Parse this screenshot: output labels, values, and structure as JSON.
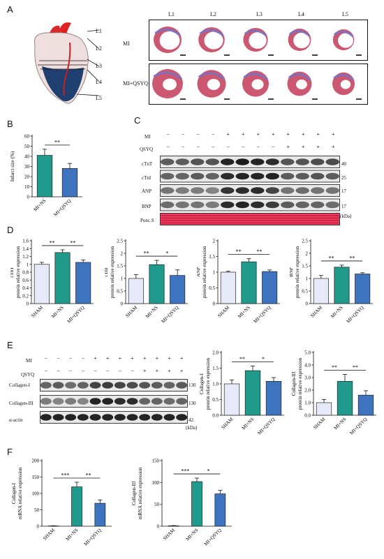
{
  "panels": {
    "A": "A",
    "B": "B",
    "C": "C",
    "D": "D",
    "E": "E",
    "F": "F"
  },
  "colors": {
    "sham": "#e6eaf8",
    "ns": "#1f9a8c",
    "qsyq": "#3d73bf",
    "infarct": "#1f3f70",
    "stain_red": "#c23a57",
    "stain_blue": "#6f76c9"
  },
  "panelA": {
    "levels": [
      "L1",
      "L2",
      "L3",
      "L4",
      "L5"
    ],
    "rows": [
      "MI",
      "MI+QSYQ"
    ]
  },
  "panelC": {
    "mi_label": "MI",
    "qsyq_label": "QSYQ",
    "mi_signs": [
      "−",
      "−",
      "−",
      "−",
      "+",
      "+",
      "+",
      "+",
      "+",
      "+",
      "+",
      "+"
    ],
    "qsyq_signs": [
      "−",
      "−",
      "−",
      "−",
      "−",
      "−",
      "−",
      "−",
      "+",
      "+",
      "+",
      "+"
    ],
    "bands": [
      "cTnT",
      "cTnI",
      "ANP",
      "BNP",
      "Ponc.S"
    ],
    "sizes": [
      "40",
      "25",
      "17",
      "17"
    ],
    "unit": "(kDa)"
  },
  "panelE": {
    "mi_label": "MI",
    "qsyq_label": "QSYQ",
    "mi_signs": [
      "−",
      "−",
      "−",
      "−",
      "+",
      "+",
      "+",
      "+",
      "+",
      "+",
      "+",
      "+"
    ],
    "qsyq_signs": [
      "−",
      "−",
      "−",
      "−",
      "−",
      "−",
      "−",
      "−",
      "+",
      "+",
      "+",
      "+"
    ],
    "bands": [
      "Collagen-I",
      "Collagen-III",
      "α-actin"
    ],
    "sizes": [
      "130",
      "130",
      "42"
    ],
    "unit": "(kDa)"
  },
  "chart_data": [
    {
      "id": "B",
      "type": "bar",
      "categories": [
        "MI+NS",
        "MI+QSYQ"
      ],
      "values": [
        41,
        28
      ],
      "errors": [
        6,
        5
      ],
      "ylabel": "Infarct size (%)",
      "ylim": [
        0,
        60
      ],
      "ticks": [
        "0",
        "10",
        "20",
        "30",
        "40",
        "50",
        "60"
      ],
      "sig": [
        {
          "from": 0,
          "to": 1,
          "label": "**"
        }
      ]
    },
    {
      "id": "D1",
      "type": "bar",
      "categories": [
        "SHAM",
        "MI+NS",
        "MI+QSYQ"
      ],
      "values": [
        1.0,
        1.3,
        1.05
      ],
      "errors": [
        0.05,
        0.07,
        0.06
      ],
      "ylabel": "cTnT\nprotein relative expression",
      "ylim": [
        0,
        1.6
      ],
      "ticks": [
        "0",
        "0.2",
        "0.4",
        "0.6",
        "0.8",
        "1",
        "1.2",
        "1.4",
        "1.6"
      ],
      "sig": [
        {
          "from": 0,
          "to": 1,
          "label": "**"
        },
        {
          "from": 1,
          "to": 2,
          "label": "**"
        }
      ]
    },
    {
      "id": "D2",
      "type": "bar",
      "categories": [
        "SHAM",
        "MI+NS",
        "MI+QSYQ"
      ],
      "values": [
        1.0,
        1.55,
        1.12
      ],
      "errors": [
        0.15,
        0.17,
        0.22
      ],
      "ylabel": "cTnI\nprotein relative expression",
      "ylim": [
        0,
        2.5
      ],
      "ticks": [
        "0",
        "0.5",
        "1",
        "1.5",
        "2",
        "2.5"
      ],
      "sig": [
        {
          "from": 0,
          "to": 1,
          "label": "**"
        },
        {
          "from": 1,
          "to": 2,
          "label": "*"
        }
      ]
    },
    {
      "id": "D3",
      "type": "bar",
      "categories": [
        "SHAM",
        "MI+NS",
        "MI+QSYQ"
      ],
      "values": [
        1.0,
        1.33,
        1.02
      ],
      "errors": [
        0.03,
        0.1,
        0.05
      ],
      "ylabel": "ANP\nprotein relative expression",
      "ylim": [
        0,
        2
      ],
      "ticks": [
        "0",
        "0.5",
        "1",
        "1.5",
        "2"
      ],
      "sig": [
        {
          "from": 0,
          "to": 1,
          "label": "**"
        },
        {
          "from": 1,
          "to": 2,
          "label": "**"
        }
      ]
    },
    {
      "id": "D4",
      "type": "bar",
      "categories": [
        "SHAM",
        "MI+NS",
        "MI+QSYQ"
      ],
      "values": [
        1.0,
        1.45,
        1.18
      ],
      "errors": [
        0.12,
        0.08,
        0.05
      ],
      "ylabel": "BNP\nprotein relative expression",
      "ylim": [
        0,
        2.5
      ],
      "ticks": [
        "0",
        "0.5",
        "1",
        "1.5",
        "2",
        "2.5"
      ],
      "sig": [
        {
          "from": 0,
          "to": 1,
          "label": "**"
        },
        {
          "from": 1,
          "to": 2,
          "label": "**"
        }
      ]
    },
    {
      "id": "E1",
      "type": "bar",
      "categories": [
        "SHAM",
        "MI+NS",
        "MI+QSYQ"
      ],
      "values": [
        1.0,
        1.42,
        1.08
      ],
      "errors": [
        0.12,
        0.15,
        0.12
      ],
      "ylabel": "Collagen-I\nprotein relative expression",
      "ylim": [
        0,
        2.0
      ],
      "ticks": [
        "0.0",
        "0.5",
        "1.0",
        "1.5",
        "2.0"
      ],
      "sig": [
        {
          "from": 0,
          "to": 1,
          "label": "**"
        },
        {
          "from": 1,
          "to": 2,
          "label": "*"
        }
      ]
    },
    {
      "id": "E2",
      "type": "bar",
      "categories": [
        "SHAM",
        "MI+NS",
        "MI+QSYQ"
      ],
      "values": [
        1.0,
        2.7,
        1.6
      ],
      "errors": [
        0.25,
        0.55,
        0.35
      ],
      "ylabel": "Collagen-III\nprotein relative expression",
      "ylim": [
        0,
        5.0
      ],
      "ticks": [
        "0.0",
        "1.0",
        "2.0",
        "3.0",
        "4.0",
        "5.0"
      ],
      "sig": [
        {
          "from": 0,
          "to": 1,
          "label": "**"
        },
        {
          "from": 1,
          "to": 2,
          "label": "**"
        }
      ]
    },
    {
      "id": "F1",
      "type": "bar",
      "categories": [
        "SHAM",
        "MI+NS",
        "MI+QSYQ"
      ],
      "values": [
        1,
        120,
        70
      ],
      "errors": [
        0.5,
        14,
        10
      ],
      "ylabel": "Collagen-I\nmRNA relative expression",
      "ylim": [
        0,
        200
      ],
      "ticks": [
        "0",
        "50",
        "100",
        "150",
        "200"
      ],
      "sig": [
        {
          "from": 0,
          "to": 1,
          "label": "***"
        },
        {
          "from": 1,
          "to": 2,
          "label": "**"
        }
      ]
    },
    {
      "id": "F2",
      "type": "bar",
      "categories": [
        "SHAM",
        "MI+NS",
        "MI+QSYQ"
      ],
      "values": [
        1,
        102,
        74
      ],
      "errors": [
        0.5,
        8,
        8
      ],
      "ylabel": "Collagen-III\nmRNA relative expression",
      "ylim": [
        0,
        150
      ],
      "ticks": [
        "0",
        "50",
        "100",
        "150"
      ],
      "sig": [
        {
          "from": 0,
          "to": 1,
          "label": "***"
        },
        {
          "from": 1,
          "to": 2,
          "label": "*"
        }
      ]
    }
  ]
}
